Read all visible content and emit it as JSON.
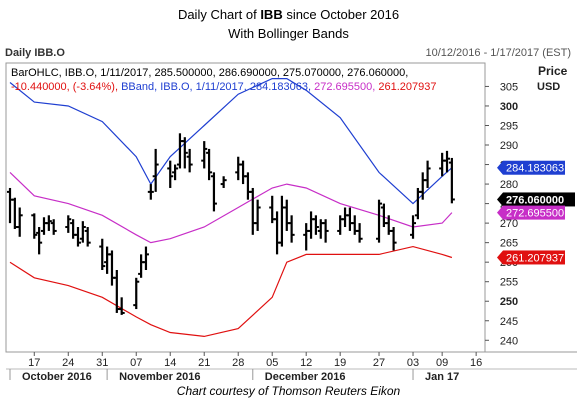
{
  "title": {
    "line1_prefix": "Daily Chart of ",
    "line1_symbol": "IBB",
    "line1_suffix": " since October 2016",
    "line2": "With Bollinger Bands"
  },
  "header": {
    "left": "Daily IBB.O",
    "right": "10/12/2016 - 1/17/2017 (EST)"
  },
  "caption": "Chart courtesy of Thomson Reuters Eikon",
  "colors": {
    "price": "#000000",
    "upper_band": "#1f3fd1",
    "middle_band": "#c72ec7",
    "lower_band": "#e01010",
    "close_tag": "#000000",
    "upper_tag": "#1f3fd1",
    "middle_tag": "#c72ec7",
    "lower_tag": "#e01010"
  },
  "chart_data": {
    "type": "ohlc",
    "legend": {
      "line1": "BarOHLC, IBB.O, 1/11/2017, 285.500000, 286.690000, 275.070000, 276.060000,",
      "line2_change": "-10.440000, (-3.64%),",
      "line2_bband": " BBand, IBB.O, 1/11/2017, 284.183063,",
      "line2_mid": " 272.695500,",
      "line2_low": " 261.207937"
    },
    "y_axis": {
      "label": "Price",
      "unit": "USD",
      "ticks": [
        240,
        245,
        250,
        255,
        260,
        265,
        270,
        275,
        280,
        285,
        290,
        295,
        300,
        305
      ],
      "bold_ticks": [
        250,
        300
      ],
      "range": [
        237,
        311
      ]
    },
    "x_axis": {
      "day_ticks": [
        {
          "label": "17",
          "date": "2016-10-17"
        },
        {
          "label": "24",
          "date": "2016-10-24"
        },
        {
          "label": "31",
          "date": "2016-10-31"
        },
        {
          "label": "07",
          "date": "2016-11-07"
        },
        {
          "label": "14",
          "date": "2016-11-14"
        },
        {
          "label": "21",
          "date": "2016-11-21"
        },
        {
          "label": "28",
          "date": "2016-11-28"
        },
        {
          "label": "05",
          "date": "2016-12-05"
        },
        {
          "label": "12",
          "date": "2016-12-12"
        },
        {
          "label": "19",
          "date": "2016-12-19"
        },
        {
          "label": "27",
          "date": "2016-12-27"
        },
        {
          "label": "03",
          "date": "2017-01-03"
        },
        {
          "label": "09",
          "date": "2017-01-09"
        },
        {
          "label": "16",
          "date": "2017-01-16"
        }
      ],
      "months": [
        {
          "label": "October 2016",
          "date": "2016-10-12"
        },
        {
          "label": "November 2016",
          "date": "2016-11-01"
        },
        {
          "label": "December 2016",
          "date": "2016-12-01"
        },
        {
          "label": "Jan 17",
          "date": "2017-01-03"
        }
      ],
      "range": [
        "2016-10-12",
        "2017-01-17"
      ]
    },
    "bars": [
      {
        "date": "2016-10-12",
        "open": 278,
        "high": 279,
        "low": 270,
        "close": 276
      },
      {
        "date": "2016-10-13",
        "open": 276,
        "high": 276.5,
        "low": 268.5,
        "close": 269
      },
      {
        "date": "2016-10-14",
        "open": 269,
        "high": 274,
        "low": 266.5,
        "close": 272
      },
      {
        "date": "2016-10-17",
        "open": 272,
        "high": 272.5,
        "low": 266,
        "close": 267
      },
      {
        "date": "2016-10-18",
        "open": 267.5,
        "high": 269,
        "low": 262,
        "close": 265
      },
      {
        "date": "2016-10-19",
        "open": 268,
        "high": 271.5,
        "low": 267,
        "close": 270
      },
      {
        "date": "2016-10-20",
        "open": 270,
        "high": 272,
        "low": 268,
        "close": 270.5
      },
      {
        "date": "2016-10-21",
        "open": 270,
        "high": 271,
        "low": 267,
        "close": 268
      },
      {
        "date": "2016-10-24",
        "open": 269,
        "high": 272,
        "low": 267.5,
        "close": 271
      },
      {
        "date": "2016-10-25",
        "open": 270,
        "high": 271,
        "low": 266,
        "close": 267
      },
      {
        "date": "2016-10-26",
        "open": 267,
        "high": 269,
        "low": 264,
        "close": 265
      },
      {
        "date": "2016-10-27",
        "open": 266,
        "high": 270.5,
        "low": 265,
        "close": 269
      },
      {
        "date": "2016-10-28",
        "open": 268,
        "high": 269,
        "low": 264,
        "close": 265
      },
      {
        "date": "2016-10-31",
        "open": 264,
        "high": 266,
        "low": 258,
        "close": 259
      },
      {
        "date": "2016-11-01",
        "open": 260,
        "high": 264,
        "low": 257,
        "close": 262
      },
      {
        "date": "2016-11-02",
        "open": 262,
        "high": 263,
        "low": 254,
        "close": 256
      },
      {
        "date": "2016-11-03",
        "open": 256,
        "high": 258,
        "low": 247,
        "close": 248
      },
      {
        "date": "2016-11-04",
        "open": 248,
        "high": 251,
        "low": 246.5,
        "close": 247
      },
      {
        "date": "2016-11-07",
        "open": 249,
        "high": 256,
        "low": 248,
        "close": 255
      },
      {
        "date": "2016-11-08",
        "open": 257,
        "high": 262,
        "low": 256,
        "close": 260
      },
      {
        "date": "2016-11-09",
        "open": 260,
        "high": 264,
        "low": 258,
        "close": 262
      },
      {
        "date": "2016-11-10",
        "open": 278,
        "high": 280,
        "low": 276,
        "close": 278
      },
      {
        "date": "2016-11-11",
        "open": 282,
        "high": 289,
        "low": 278,
        "close": 285
      },
      {
        "date": "2016-11-14",
        "open": 284,
        "high": 286,
        "low": 279,
        "close": 282
      },
      {
        "date": "2016-11-15",
        "open": 283,
        "high": 285,
        "low": 281,
        "close": 284
      },
      {
        "date": "2016-11-16",
        "open": 285,
        "high": 293,
        "low": 284,
        "close": 291
      },
      {
        "date": "2016-11-17",
        "open": 291,
        "high": 292,
        "low": 284,
        "close": 288
      },
      {
        "date": "2016-11-18",
        "open": 287,
        "high": 289,
        "low": 283,
        "close": 285
      },
      {
        "date": "2016-11-21",
        "open": 286,
        "high": 291,
        "low": 284,
        "close": 289
      },
      {
        "date": "2016-11-22",
        "open": 288,
        "high": 289,
        "low": 281,
        "close": 283
      },
      {
        "date": "2016-11-23",
        "open": 282,
        "high": 283,
        "low": 273,
        "close": 275
      },
      {
        "date": "2016-11-25",
        "open": 280,
        "high": 282,
        "low": 279,
        "close": 281
      },
      {
        "date": "2016-11-28",
        "open": 283,
        "high": 287,
        "low": 281,
        "close": 285
      },
      {
        "date": "2016-11-29",
        "open": 285,
        "high": 286,
        "low": 280,
        "close": 282
      },
      {
        "date": "2016-11-30",
        "open": 282,
        "high": 283,
        "low": 276,
        "close": 278
      },
      {
        "date": "2016-12-01",
        "open": 278,
        "high": 279,
        "low": 267,
        "close": 270
      },
      {
        "date": "2016-12-02",
        "open": 270,
        "high": 276,
        "low": 268,
        "close": 274
      },
      {
        "date": "2016-12-05",
        "open": 274,
        "high": 277,
        "low": 270,
        "close": 271
      },
      {
        "date": "2016-12-06",
        "open": 271,
        "high": 273,
        "low": 262,
        "close": 265
      },
      {
        "date": "2016-12-07",
        "open": 265,
        "high": 277,
        "low": 264,
        "close": 274
      },
      {
        "date": "2016-12-08",
        "open": 274,
        "high": 276,
        "low": 268,
        "close": 270
      },
      {
        "date": "2016-12-09",
        "open": 270,
        "high": 272,
        "low": 265,
        "close": 267
      },
      {
        "date": "2016-12-12",
        "open": 267,
        "high": 270,
        "low": 263,
        "close": 268
      },
      {
        "date": "2016-12-13",
        "open": 268,
        "high": 273,
        "low": 266,
        "close": 271
      },
      {
        "date": "2016-12-14",
        "open": 271,
        "high": 272,
        "low": 267,
        "close": 269
      },
      {
        "date": "2016-12-15",
        "open": 268,
        "high": 271,
        "low": 266,
        "close": 270
      },
      {
        "date": "2016-12-16",
        "open": 270,
        "high": 271,
        "low": 265,
        "close": 268
      },
      {
        "date": "2016-12-19",
        "open": 268,
        "high": 272,
        "low": 267,
        "close": 271
      },
      {
        "date": "2016-12-20",
        "open": 271,
        "high": 274,
        "low": 269,
        "close": 272
      },
      {
        "date": "2016-12-21",
        "open": 272,
        "high": 274,
        "low": 268,
        "close": 270
      },
      {
        "date": "2016-12-22",
        "open": 270,
        "high": 272,
        "low": 267,
        "close": 268
      },
      {
        "date": "2016-12-23",
        "open": 268,
        "high": 270,
        "low": 265,
        "close": 266
      },
      {
        "date": "2016-12-27",
        "open": 266,
        "high": 276,
        "low": 265,
        "close": 275
      },
      {
        "date": "2016-12-28",
        "open": 274,
        "high": 275,
        "low": 269,
        "close": 270
      },
      {
        "date": "2016-12-29",
        "open": 270,
        "high": 272,
        "low": 267,
        "close": 268
      },
      {
        "date": "2016-12-30",
        "open": 268,
        "high": 269,
        "low": 263,
        "close": 265
      },
      {
        "date": "2017-01-03",
        "open": 267,
        "high": 272,
        "low": 266,
        "close": 270
      },
      {
        "date": "2017-01-04",
        "open": 272,
        "high": 279,
        "low": 271,
        "close": 278
      },
      {
        "date": "2017-01-05",
        "open": 278,
        "high": 283,
        "low": 276,
        "close": 281
      },
      {
        "date": "2017-01-06",
        "open": 281,
        "high": 286,
        "low": 279,
        "close": 284
      },
      {
        "date": "2017-01-09",
        "open": 284,
        "high": 288,
        "low": 282,
        "close": 286
      },
      {
        "date": "2017-01-10",
        "open": 286,
        "high": 288.5,
        "low": 283,
        "close": 286.5
      },
      {
        "date": "2017-01-11",
        "open": 285.5,
        "high": 286.69,
        "low": 275.07,
        "close": 276.06
      }
    ],
    "bollinger": {
      "points": [
        {
          "date": "2016-10-12",
          "upper": 306,
          "middle": 283,
          "lower": 260
        },
        {
          "date": "2016-10-17",
          "upper": 301,
          "middle": 277,
          "lower": 256
        },
        {
          "date": "2016-10-24",
          "upper": 300,
          "middle": 275,
          "lower": 254
        },
        {
          "date": "2016-10-31",
          "upper": 296,
          "middle": 272,
          "lower": 251
        },
        {
          "date": "2016-11-07",
          "upper": 287,
          "middle": 267,
          "lower": 246
        },
        {
          "date": "2016-11-10",
          "upper": 280,
          "middle": 265,
          "lower": 244
        },
        {
          "date": "2016-11-14",
          "upper": 287,
          "middle": 266,
          "lower": 242
        },
        {
          "date": "2016-11-21",
          "upper": 295,
          "middle": 269,
          "lower": 241
        },
        {
          "date": "2016-11-28",
          "upper": 303,
          "middle": 274,
          "lower": 243
        },
        {
          "date": "2016-12-05",
          "upper": 307,
          "middle": 279,
          "lower": 251
        },
        {
          "date": "2016-12-08",
          "upper": 307,
          "middle": 280,
          "lower": 260
        },
        {
          "date": "2016-12-12",
          "upper": 304,
          "middle": 279,
          "lower": 262
        },
        {
          "date": "2016-12-19",
          "upper": 297,
          "middle": 275,
          "lower": 262
        },
        {
          "date": "2016-12-27",
          "upper": 283,
          "middle": 272,
          "lower": 262
        },
        {
          "date": "2017-01-03",
          "upper": 275,
          "middle": 269,
          "lower": 264
        },
        {
          "date": "2017-01-09",
          "upper": 282,
          "middle": 270,
          "lower": 262
        },
        {
          "date": "2017-01-11",
          "upper": 284.183063,
          "middle": 272.6955,
          "lower": 261.207937
        }
      ]
    },
    "price_tags": [
      {
        "id": "upper",
        "label": "284.183063",
        "value": 284.183063
      },
      {
        "id": "close",
        "label": "276.060000",
        "value": 276.06
      },
      {
        "id": "middle",
        "label": "272.695500",
        "value": 272.6955
      },
      {
        "id": "lower",
        "label": "261.207937",
        "value": 261.207937
      }
    ],
    "grid": false
  }
}
